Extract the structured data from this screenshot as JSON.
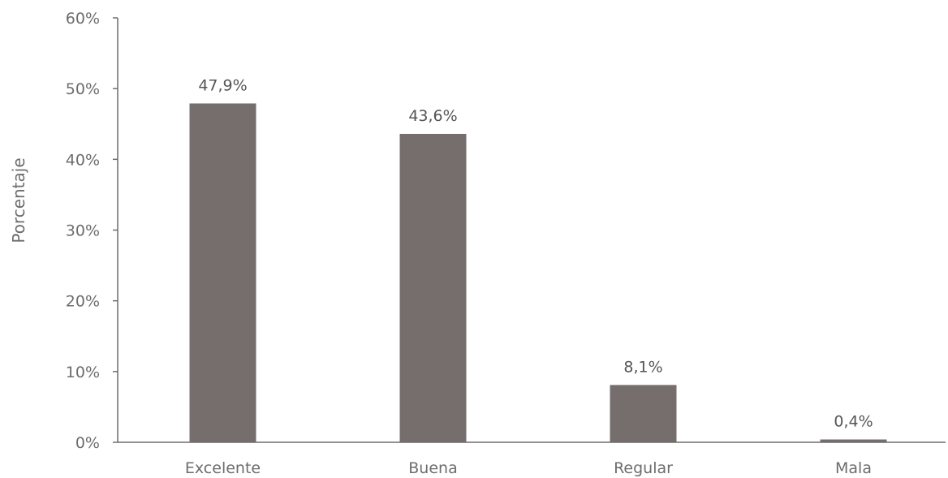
{
  "chart_data": {
    "type": "bar",
    "categories": [
      "Excelente",
      "Buena",
      "Regular",
      "Mala"
    ],
    "values": [
      47.9,
      43.6,
      8.1,
      0.4
    ],
    "data_labels": [
      "47,9%",
      "43,6%",
      "8,1%",
      "0,4%"
    ],
    "ylabel": "Porcentaje",
    "ylim": [
      0,
      60
    ],
    "yticks": [
      0,
      10,
      20,
      30,
      40,
      50,
      60
    ],
    "ytick_labels": [
      "0%",
      "10%",
      "20%",
      "30%",
      "40%",
      "50%",
      "60%"
    ],
    "grid": false,
    "bar_color": "#766d6d",
    "axis_color": "#6d6d6d"
  }
}
